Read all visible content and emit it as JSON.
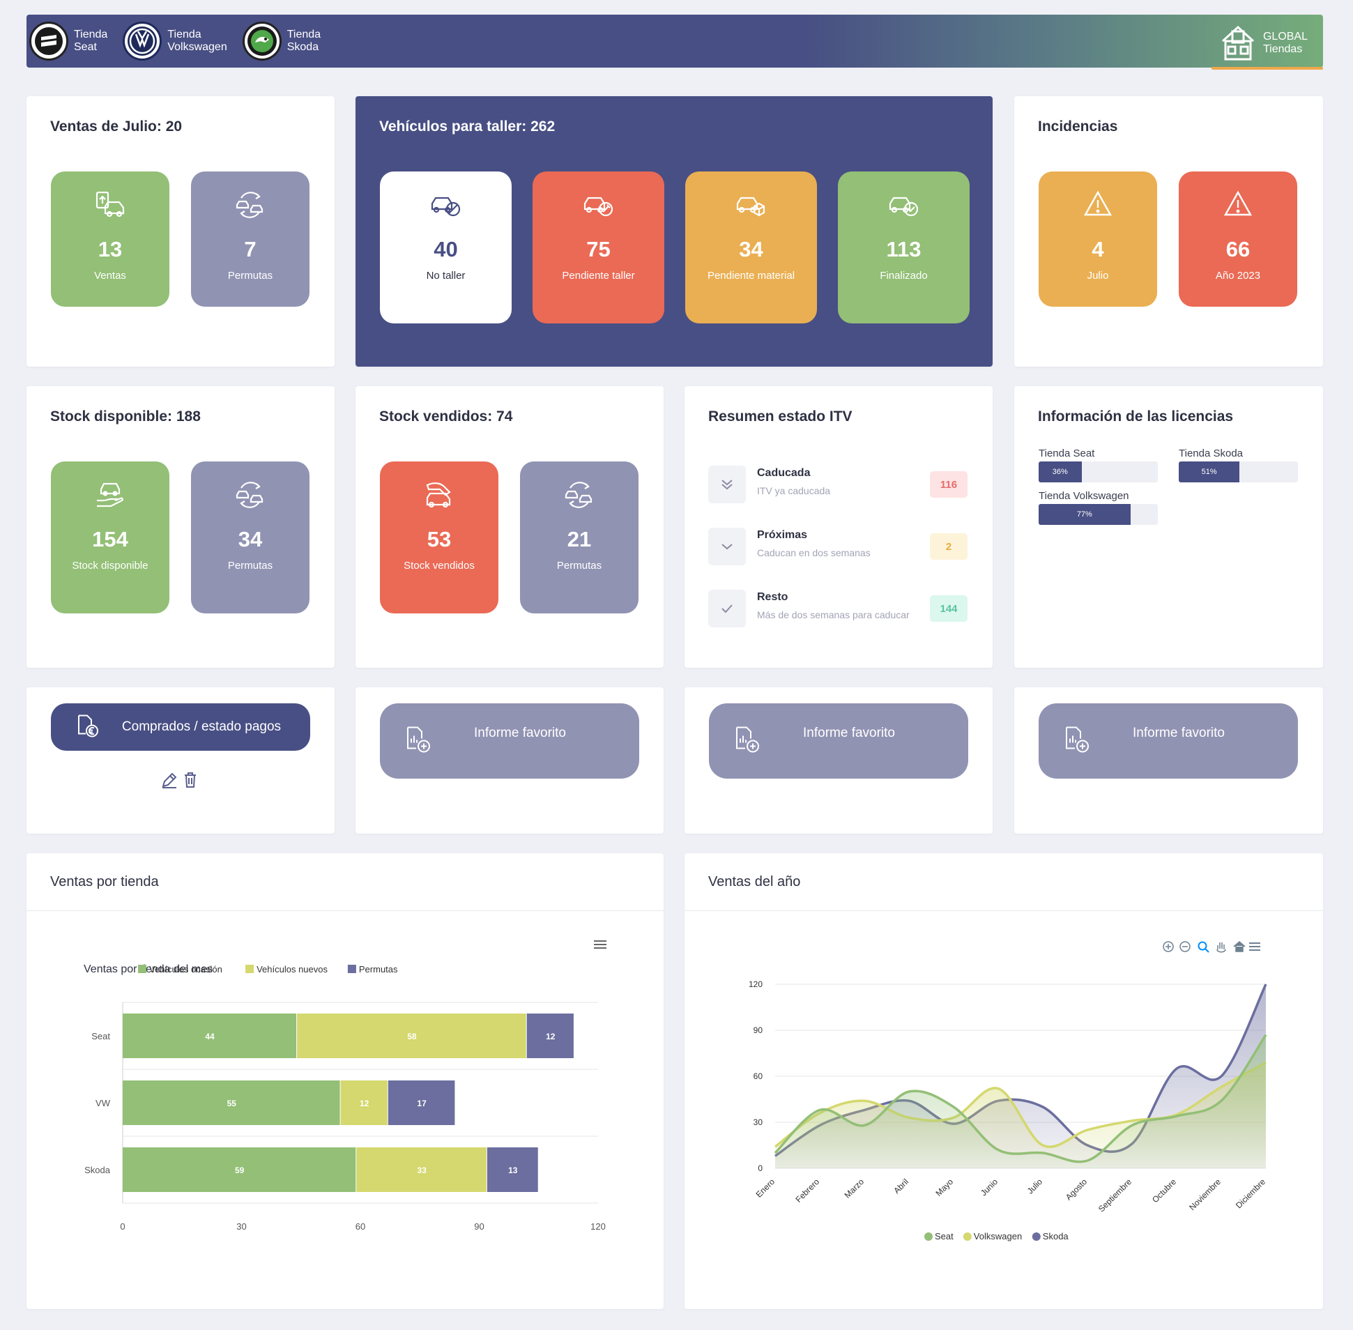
{
  "topbar": {
    "stores": [
      {
        "line1": "Tienda",
        "line2": "Seat",
        "logo": "seat-logo"
      },
      {
        "line1": "Tienda",
        "line2": "Volkswagen",
        "logo": "vw-logo"
      },
      {
        "line1": "Tienda",
        "line2": "Skoda",
        "logo": "skoda-logo"
      }
    ],
    "global": {
      "line1": "GLOBAL",
      "line2": "Tiendas",
      "icon": "buildings-icon"
    }
  },
  "ventas_julio": {
    "title": "Ventas de Julio: 20",
    "tiles": [
      {
        "value": "13",
        "label": "Ventas",
        "color": "#93bf76",
        "icon": "car-sale-icon"
      },
      {
        "value": "7",
        "label": "Permutas",
        "color": "#9193b3",
        "icon": "car-exchange-icon"
      }
    ]
  },
  "taller": {
    "title": "Vehículos para taller: 262",
    "tiles": [
      {
        "value": "40",
        "label": "No taller",
        "color": "#ffffff",
        "icon": "car-no-icon"
      },
      {
        "value": "75",
        "label": "Pendiente taller",
        "color": "#ea6a55",
        "icon": "car-wrench-icon"
      },
      {
        "value": "34",
        "label": "Pendiente material",
        "color": "#eaaf52",
        "icon": "car-box-icon"
      },
      {
        "value": "113",
        "label": "Finalizado",
        "color": "#93bf76",
        "icon": "car-check-icon"
      }
    ]
  },
  "incidencias": {
    "title": "Incidencias",
    "tiles": [
      {
        "value": "4",
        "label": "Julio",
        "color": "#eaaf52",
        "icon": "warning-icon"
      },
      {
        "value": "66",
        "label": "Año 2023",
        "color": "#ea6a55",
        "icon": "warning-icon"
      }
    ]
  },
  "stock_disponible": {
    "title": "Stock disponible: 188",
    "tiles": [
      {
        "value": "154",
        "label": "Stock disponible",
        "color": "#93bf76",
        "icon": "car-hand-icon"
      },
      {
        "value": "34",
        "label": "Permutas",
        "color": "#9193b3",
        "icon": "car-exchange-icon"
      }
    ]
  },
  "stock_vendidos": {
    "title": "Stock vendidos: 74",
    "tiles": [
      {
        "value": "53",
        "label": "Stock vendidos",
        "color": "#ea6a55",
        "icon": "car-sold-icon"
      },
      {
        "value": "21",
        "label": "Permutas",
        "color": "#9193b3",
        "icon": "car-exchange-icon"
      }
    ]
  },
  "itv": {
    "title": "Resumen estado ITV",
    "rows": [
      {
        "title": "Caducada",
        "subtitle": "ITV ya caducada",
        "count": "116",
        "badge_bg": "#fde3e3",
        "badge_fg": "#e86a6a",
        "icon": "double-chevron-down-icon"
      },
      {
        "title": "Próximas",
        "subtitle": "Caducan en dos semanas",
        "count": "2",
        "badge_bg": "#fdf3d8",
        "badge_fg": "#e8ac3c",
        "icon": "chevron-down-icon"
      },
      {
        "title": "Resto",
        "subtitle": "Más de dos semanas para caducar",
        "count": "144",
        "badge_bg": "#dbf7ee",
        "badge_fg": "#5cc3a2",
        "icon": "check-icon"
      }
    ]
  },
  "licencias": {
    "title": "Información de las licencias",
    "items": [
      {
        "name": "Tienda Seat",
        "percent": 36,
        "label": "36%"
      },
      {
        "name": "Tienda Skoda",
        "percent": 51,
        "label": "51%"
      },
      {
        "name": "Tienda Volkswagen",
        "percent": 77,
        "label": "77%"
      }
    ]
  },
  "buttons": {
    "comprados": "Comprados / estado pagos",
    "favorito1": "Informe favorito",
    "favorito2": "Informe favorito",
    "favorito3": "Informe favorito"
  },
  "ventas_tienda": {
    "card_title": "Ventas por tienda",
    "chart_data": {
      "type": "bar",
      "orientation": "horizontal",
      "stacked": true,
      "title": "Ventas por tienda del mes",
      "categories": [
        "Seat",
        "VW",
        "Skoda"
      ],
      "series": [
        {
          "name": "Vehículos ocasión",
          "color": "#93bf76",
          "values": [
            44,
            55,
            59
          ]
        },
        {
          "name": "Vehículos nuevos",
          "color": "#d4d86e",
          "values": [
            58,
            12,
            33
          ]
        },
        {
          "name": "Permutas",
          "color": "#6b6e9e",
          "values": [
            12,
            17,
            13
          ]
        }
      ],
      "xlim": [
        0,
        120
      ],
      "xticks": [
        "0",
        "30",
        "60",
        "90",
        "120"
      ],
      "legend": "top-left"
    }
  },
  "ventas_anio": {
    "card_title": "Ventas del año",
    "chart_data": {
      "type": "area",
      "x": [
        "Enero",
        "Febrero",
        "Marzo",
        "Abril",
        "Mayo",
        "Junio",
        "Julio",
        "Agosto",
        "Septiembre",
        "Octubre",
        "Noviembre",
        "Diciembre"
      ],
      "series": [
        {
          "name": "Seat",
          "color": "#93bf76",
          "values": [
            10,
            38,
            28,
            50,
            40,
            12,
            10,
            5,
            28,
            34,
            44,
            87
          ]
        },
        {
          "name": "Volkswagen",
          "color": "#d4d86e",
          "values": [
            14,
            36,
            44,
            33,
            33,
            52,
            15,
            25,
            31,
            35,
            53,
            69
          ]
        },
        {
          "name": "Skoda",
          "color": "#6b6e9e",
          "values": [
            8,
            28,
            38,
            44,
            29,
            44,
            40,
            15,
            16,
            65,
            60,
            120
          ]
        }
      ],
      "ylim": [
        0,
        120
      ],
      "yticks": [
        "0",
        "30",
        "60",
        "90",
        "120"
      ],
      "legend": "bottom"
    }
  }
}
